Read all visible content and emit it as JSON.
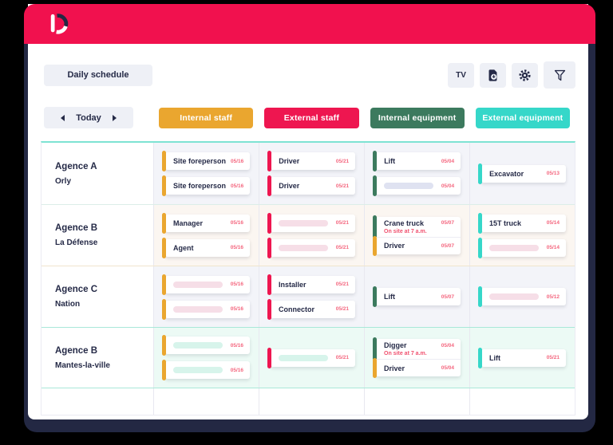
{
  "palette": {
    "orange": "#EAA62F",
    "red": "#EE1650",
    "green": "#3C7A5E",
    "teal": "#36D7C9",
    "lavender": "#DFE2F1",
    "pink": "#F6DEE7",
    "mint": "#D7F4EB",
    "navy": "#252A47",
    "header_red": "#F1114E",
    "date_text": "#F4677F"
  },
  "header": {
    "logo_letter": "D"
  },
  "toolbar": {
    "title": "Daily schedule",
    "tv_label": "TV",
    "icon_names": [
      "export-file",
      "settings-gear",
      "filter-funnel"
    ]
  },
  "date_nav": {
    "label": "Today"
  },
  "columns": [
    {
      "id": "internal-staff",
      "label": "Internal staff",
      "color": "#EAA62F"
    },
    {
      "id": "external-staff",
      "label": "External staff",
      "color": "#EE1650"
    },
    {
      "id": "internal-equipment",
      "label": "Internal equipment",
      "color": "#3C7A5E"
    },
    {
      "id": "external-equipment",
      "label": "External equipment",
      "color": "#36D7C9"
    }
  ],
  "rows": [
    {
      "agency": "Agence A",
      "location": "Orly",
      "variant": "default",
      "cells": [
        [
          {
            "type": "card",
            "label": "Site foreperson",
            "date": "05/16",
            "bar": "orange"
          },
          {
            "type": "card",
            "label": "Site foreperson",
            "date": "05/16",
            "bar": "orange"
          }
        ],
        [
          {
            "type": "card",
            "label": "Driver",
            "date": "05/21",
            "bar": "red"
          },
          {
            "type": "card",
            "label": "Driver",
            "date": "05/21",
            "bar": "red"
          }
        ],
        [
          {
            "type": "card",
            "label": "Lift",
            "date": "05/04",
            "bar": "green"
          },
          {
            "type": "blurred",
            "date": "05/04",
            "bar": "green",
            "tint": "lavender"
          }
        ],
        [
          {
            "type": "card",
            "label": "Excavator",
            "date": "05/13",
            "bar": "teal"
          }
        ]
      ]
    },
    {
      "agency": "Agence B",
      "location": "La Défense",
      "variant": "cream",
      "cells": [
        [
          {
            "type": "card",
            "label": "Manager",
            "date": "05/16",
            "bar": "orange"
          },
          {
            "type": "card",
            "label": "Agent",
            "date": "05/16",
            "bar": "orange"
          }
        ],
        [
          {
            "type": "blurred",
            "date": "05/21",
            "bar": "red",
            "tint": "pink"
          },
          {
            "type": "blurred",
            "date": "05/21",
            "bar": "red",
            "tint": "pink"
          }
        ],
        [
          {
            "type": "group",
            "parts": [
              {
                "label": "Crane truck",
                "date": "05/07",
                "bar": "green",
                "subtitle": "On site at 7 a.m."
              },
              {
                "label": "Driver",
                "date": "05/07",
                "bar": "orange"
              }
            ]
          }
        ],
        [
          {
            "type": "card",
            "label": "15T truck",
            "date": "05/14",
            "bar": "teal"
          },
          {
            "type": "blurred",
            "date": "05/14",
            "bar": "teal",
            "tint": "pink"
          }
        ]
      ]
    },
    {
      "agency": "Agence C",
      "location": "Nation",
      "variant": "default",
      "cells": [
        [
          {
            "type": "blurred",
            "date": "05/16",
            "bar": "orange",
            "tint": "pink"
          },
          {
            "type": "blurred",
            "date": "05/16",
            "bar": "orange",
            "tint": "pink"
          }
        ],
        [
          {
            "type": "card",
            "label": "Installer",
            "date": "05/21",
            "bar": "red"
          },
          {
            "type": "card",
            "label": "Connector",
            "date": "05/21",
            "bar": "red"
          }
        ],
        [
          {
            "type": "card",
            "label": "Lift",
            "date": "05/07",
            "bar": "green"
          }
        ],
        [
          {
            "type": "blurred",
            "date": "05/12",
            "bar": "teal",
            "tint": "pink"
          }
        ]
      ]
    },
    {
      "agency": "Agence B",
      "location": "Mantes-la-ville",
      "variant": "mint",
      "cells": [
        [
          {
            "type": "blurred",
            "date": "05/16",
            "bar": "orange",
            "tint": "mint"
          },
          {
            "type": "blurred",
            "date": "05/16",
            "bar": "orange",
            "tint": "mint"
          }
        ],
        [
          {
            "type": "blurred",
            "date": "05/21",
            "bar": "red",
            "tint": "mint"
          }
        ],
        [
          {
            "type": "group",
            "parts": [
              {
                "label": "Digger",
                "date": "05/04",
                "bar": "green",
                "subtitle": "On site at 7 a.m."
              },
              {
                "label": "Driver",
                "date": "05/04",
                "bar": "orange"
              }
            ]
          }
        ],
        [
          {
            "type": "card",
            "label": "Lift",
            "date": "05/21",
            "bar": "teal"
          }
        ]
      ]
    },
    {
      "agency": "",
      "location": "",
      "variant": "empty",
      "cells": [
        [],
        [],
        [],
        []
      ]
    }
  ]
}
